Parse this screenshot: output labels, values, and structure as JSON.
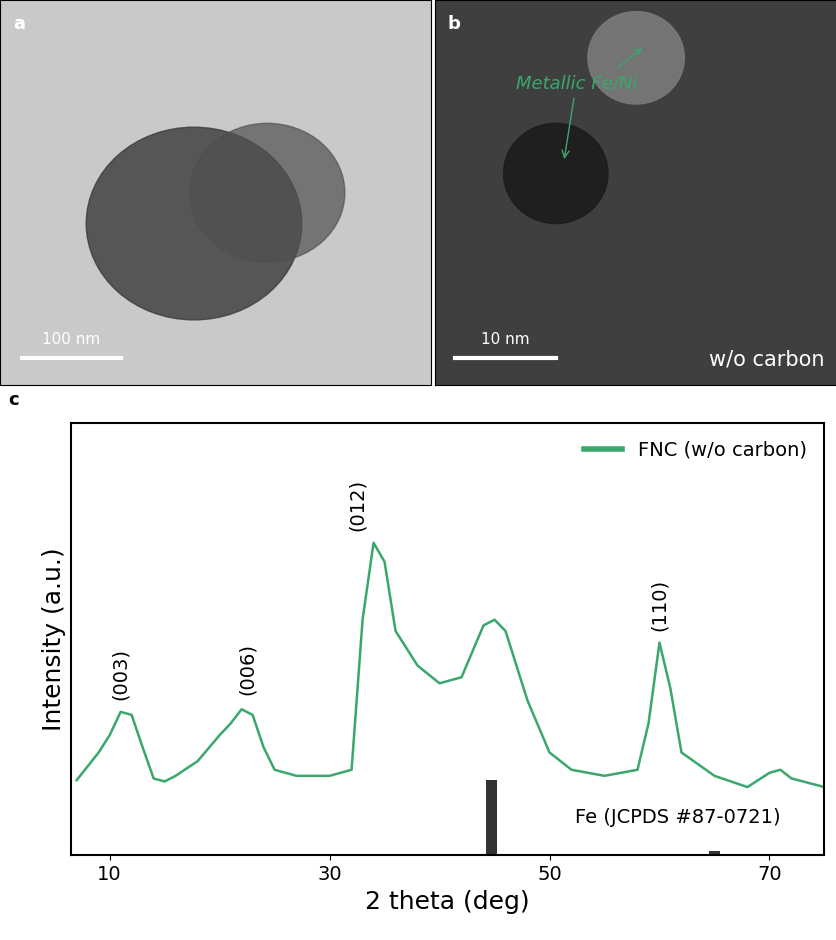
{
  "images": [
    {
      "label": "a",
      "scale_bar": "100 nm"
    },
    {
      "label": "b",
      "scale_bar": "10 nm",
      "annotation": "Metallic Fe/Ni",
      "caption": "w/o carbon"
    }
  ],
  "chart_data": {
    "type": "line",
    "panel_label": "c",
    "x_label": "2 theta (deg)",
    "y_label": "Intensity (a.u.)",
    "xlim": [
      6.5,
      75
    ],
    "xticks": [
      10,
      30,
      50,
      70
    ],
    "ylim": [
      0,
      100
    ],
    "yticks": [],
    "tick_labels": "x",
    "legend": "upper right",
    "series": [
      {
        "name": "FNC (w/o carbon)",
        "type": "line",
        "color": "#3aa76d",
        "x": [
          7,
          9,
          10,
          11,
          12,
          13,
          14,
          15,
          16,
          18,
          20,
          21,
          22,
          23,
          24,
          25,
          27,
          30,
          32,
          33,
          34,
          35,
          36,
          38,
          40,
          42,
          44,
          45,
          46,
          48,
          50,
          52,
          55,
          58,
          59,
          60,
          61,
          62,
          65,
          68,
          70,
          71,
          72,
          75
        ],
        "values": [
          17.4,
          23.8,
          27.8,
          33.2,
          32.5,
          25.0,
          17.8,
          17.1,
          18.4,
          21.8,
          27.8,
          30.5,
          33.8,
          32.5,
          25.0,
          19.8,
          18.4,
          18.4,
          19.8,
          54.5,
          72.3,
          67.9,
          51.9,
          43.9,
          39.8,
          41.2,
          53.2,
          54.5,
          51.9,
          35.8,
          23.8,
          19.8,
          18.4,
          19.8,
          30.5,
          49.2,
          38.5,
          23.8,
          18.4,
          15.8,
          19.1,
          19.8,
          17.8,
          15.8
        ]
      },
      {
        "name": "Fe (JCPDS #87-0721)",
        "type": "bar",
        "color": "#333333",
        "x": [
          44.7,
          65.0
        ],
        "values": [
          17.4,
          1.1
        ]
      }
    ],
    "annotations": [
      {
        "text": "(003)",
        "x": 11,
        "y": 36
      },
      {
        "text": "(006)",
        "x": 22.5,
        "y": 37
      },
      {
        "text": "(012)",
        "x": 32.5,
        "y": 75
      },
      {
        "text": "(110)",
        "x": 60,
        "y": 52
      }
    ]
  }
}
